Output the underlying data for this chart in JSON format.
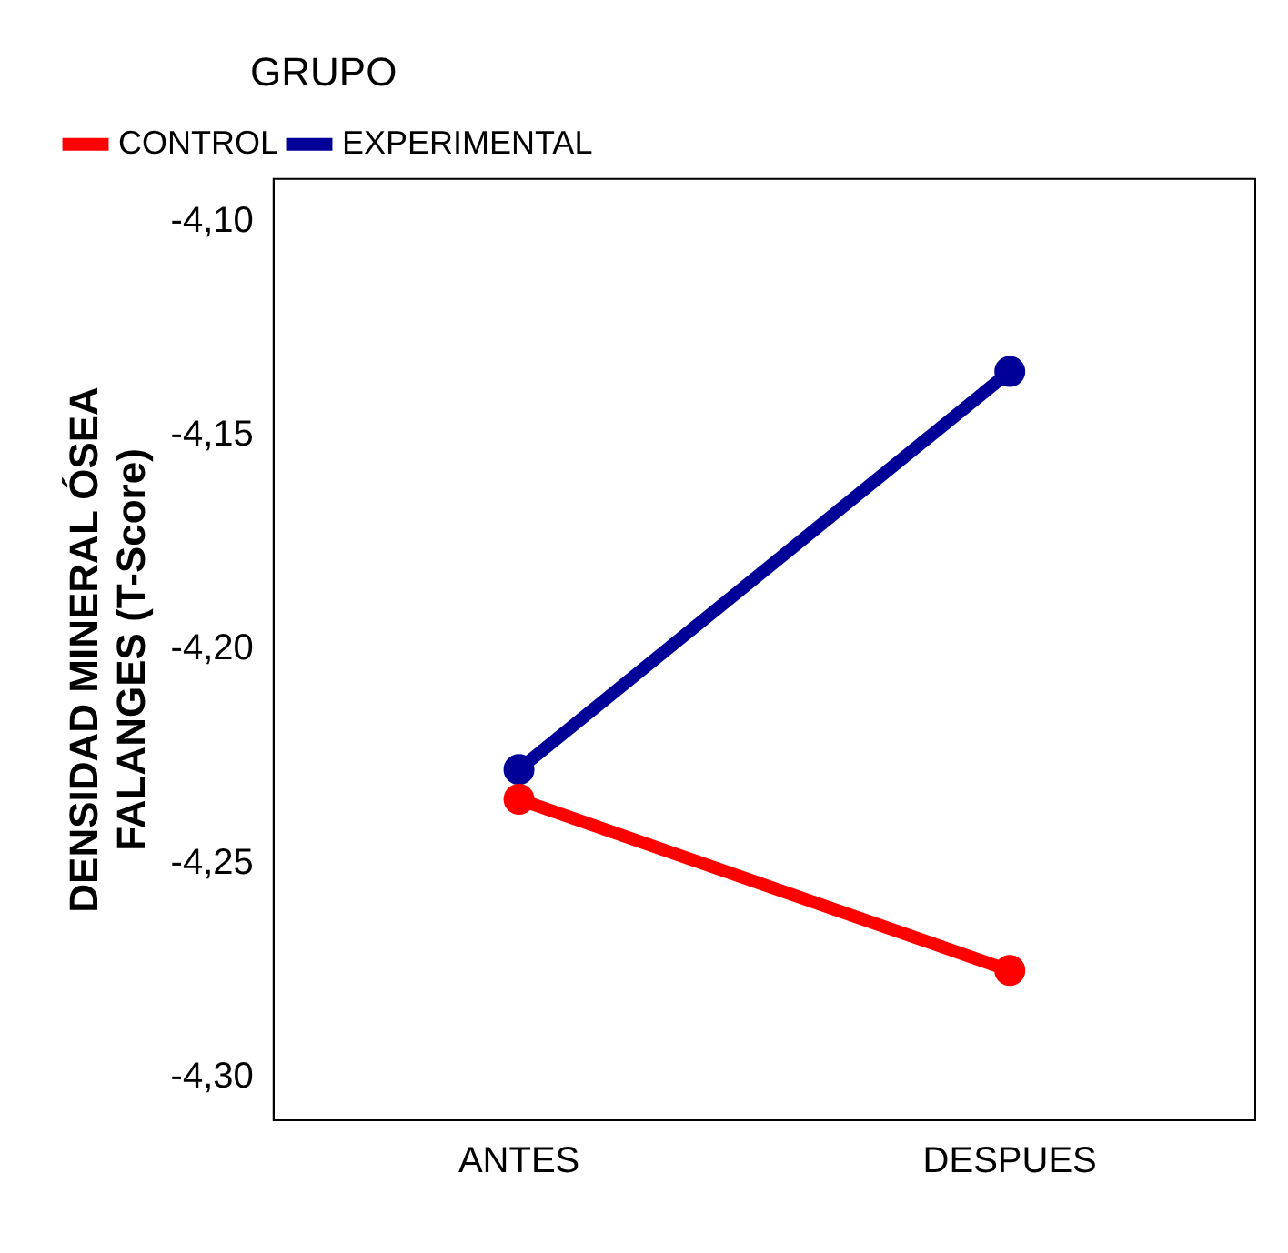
{
  "chart_data": {
    "type": "line",
    "ylabel": "DENSIDAD MINERAL ÓSEA\nFALANGES (T-Score)",
    "legend_title": "GRUPO",
    "legend": "top",
    "categories": [
      "ANTES",
      "DESPUES"
    ],
    "series": [
      {
        "name": "CONTROL",
        "color": "#ff0000",
        "values": [
          -4.235,
          -4.275
        ]
      },
      {
        "name": "EXPERIMENTAL",
        "color": "#000099",
        "values": [
          -4.228,
          -4.135
        ]
      }
    ],
    "ylim": [
      -4.31,
      -4.09
    ],
    "yticks": [
      {
        "value": -4.3,
        "label": "-4,30"
      },
      {
        "value": -4.25,
        "label": "-4,25"
      },
      {
        "value": -4.2,
        "label": "-4,20"
      },
      {
        "value": -4.15,
        "label": "-4,15"
      },
      {
        "value": -4.1,
        "label": "-4,10"
      }
    ],
    "grid": false,
    "marker": "circle",
    "line_style": "solid"
  }
}
